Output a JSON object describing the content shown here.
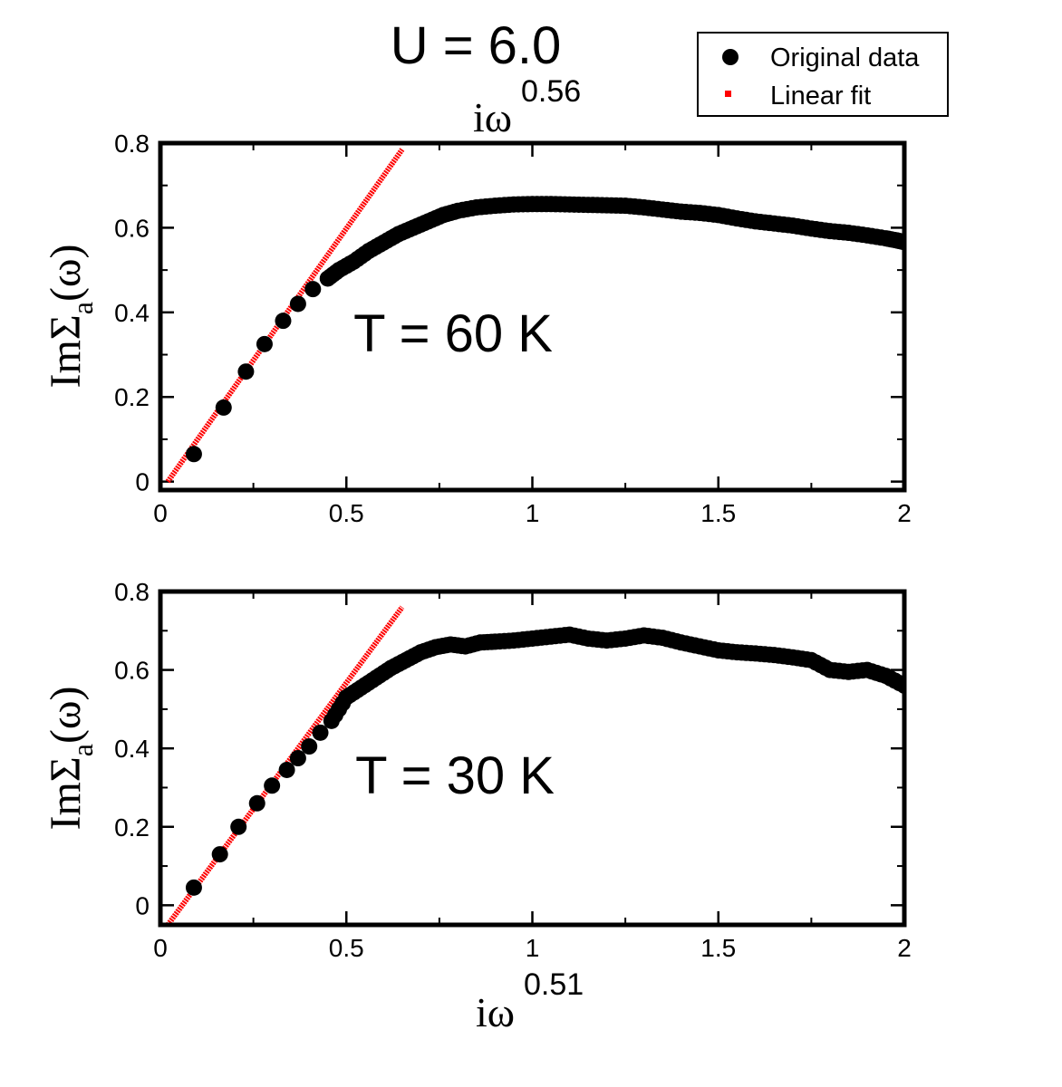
{
  "figure_title": "U = 6.0",
  "legend": {
    "original": "Original data",
    "fit": "Linear fit"
  },
  "colors": {
    "data": "#000000",
    "fit": "#ff0000"
  },
  "top_xlabel": {
    "base": "iω",
    "exp": "0.56"
  },
  "bottom_xlabel": {
    "base": "iω",
    "exp": "0.51"
  },
  "chart_data": [
    {
      "type": "scatter",
      "title": "T = 60 K",
      "ylabel": {
        "main": "ImΣ",
        "sub": "a",
        "tail": "(ω)"
      },
      "xlim": [
        0,
        2
      ],
      "ylim": [
        -0.02,
        0.8
      ],
      "xticks": [
        0,
        0.5,
        1,
        1.5,
        2
      ],
      "xtick_labels": [
        "0",
        "0.5",
        "1",
        "1.5",
        "2"
      ],
      "yticks": [
        0,
        0.2,
        0.4,
        0.6,
        0.8
      ],
      "ytick_labels": [
        "0",
        "0.2",
        "0.4",
        "0.6",
        "0.8"
      ],
      "series": [
        {
          "name": "Original data",
          "x": [
            0.09,
            0.17,
            0.23,
            0.28,
            0.33,
            0.37,
            0.41,
            0.45,
            0.48,
            0.52,
            0.56,
            0.6,
            0.64,
            0.68,
            0.72,
            0.76,
            0.8,
            0.85,
            0.9,
            0.95,
            1.0,
            1.05,
            1.1,
            1.15,
            1.2,
            1.25,
            1.3,
            1.35,
            1.4,
            1.45,
            1.5,
            1.55,
            1.6,
            1.65,
            1.7,
            1.75,
            1.8,
            1.85,
            1.9,
            1.95,
            1.98,
            2.0
          ],
          "y": [
            0.065,
            0.175,
            0.26,
            0.325,
            0.38,
            0.42,
            0.455,
            0.48,
            0.5,
            0.52,
            0.545,
            0.565,
            0.585,
            0.6,
            0.615,
            0.63,
            0.64,
            0.648,
            0.652,
            0.655,
            0.656,
            0.656,
            0.655,
            0.654,
            0.653,
            0.652,
            0.648,
            0.643,
            0.638,
            0.635,
            0.63,
            0.622,
            0.615,
            0.61,
            0.605,
            0.598,
            0.592,
            0.588,
            0.582,
            0.575,
            0.57,
            0.566
          ]
        },
        {
          "name": "Linear fit",
          "x": [
            0.02,
            0.65
          ],
          "y": [
            0.0,
            0.785
          ]
        }
      ]
    },
    {
      "type": "scatter",
      "title": "T = 30 K",
      "ylabel": {
        "main": "ImΣ",
        "sub": "a",
        "tail": "(ω)"
      },
      "xlim": [
        0,
        2
      ],
      "ylim": [
        -0.05,
        0.8
      ],
      "xticks": [
        0,
        0.5,
        1,
        1.5,
        2
      ],
      "xtick_labels": [
        "0",
        "0.5",
        "1",
        "1.5",
        "2"
      ],
      "yticks": [
        0,
        0.2,
        0.4,
        0.6,
        0.8
      ],
      "ytick_labels": [
        "0",
        "0.2",
        "0.4",
        "0.6",
        "0.8"
      ],
      "series": [
        {
          "name": "Original data",
          "x": [
            0.09,
            0.16,
            0.21,
            0.26,
            0.3,
            0.34,
            0.37,
            0.4,
            0.43,
            0.46,
            0.5,
            0.54,
            0.58,
            0.62,
            0.66,
            0.7,
            0.74,
            0.78,
            0.82,
            0.86,
            0.9,
            0.95,
            1.0,
            1.05,
            1.1,
            1.15,
            1.2,
            1.25,
            1.3,
            1.35,
            1.4,
            1.45,
            1.5,
            1.55,
            1.6,
            1.65,
            1.7,
            1.75,
            1.8,
            1.85,
            1.9,
            1.95,
            2.0
          ],
          "y": [
            0.045,
            0.13,
            0.2,
            0.26,
            0.305,
            0.345,
            0.375,
            0.405,
            0.44,
            0.47,
            0.53,
            0.555,
            0.58,
            0.605,
            0.625,
            0.645,
            0.658,
            0.665,
            0.66,
            0.67,
            0.672,
            0.675,
            0.68,
            0.685,
            0.69,
            0.68,
            0.675,
            0.68,
            0.688,
            0.682,
            0.67,
            0.66,
            0.65,
            0.645,
            0.642,
            0.638,
            0.632,
            0.625,
            0.6,
            0.595,
            0.6,
            0.585,
            0.56
          ]
        },
        {
          "name": "Linear fit",
          "x": [
            0.02,
            0.65
          ],
          "y": [
            -0.05,
            0.76
          ]
        }
      ]
    }
  ]
}
